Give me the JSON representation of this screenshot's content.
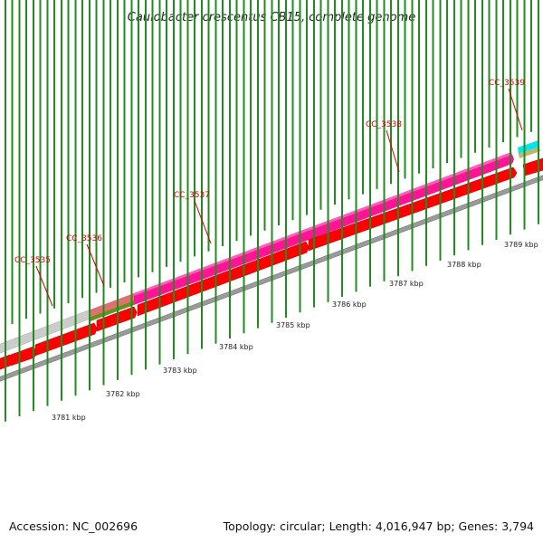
{
  "title": "Caulobacter crescentus CB15, complete genome",
  "footer": {
    "accession": "Accession: NC_002696",
    "summary": "Topology: circular; Length: 4,016,947 bp; Genes: 3,794"
  },
  "gene_labels": [
    "CC_3535",
    "CC_3536",
    "CC_3537",
    "CC_3538",
    "CC_3539"
  ],
  "kbp_labels": [
    "3781 kbp",
    "3782 kbp",
    "3783 kbp",
    "3784 kbp",
    "3785 kbp",
    "3786 kbp",
    "3787 kbp",
    "3788 kbp",
    "3789 kbp"
  ],
  "colors": {
    "cds": "#ff0000",
    "cds_dark": "#c00000",
    "gene_pink": "#ff1493",
    "gene_pink_light": "#ff7fc8",
    "gene_grey": "#cccccc",
    "gene_salmon": "#e07070",
    "gene_olive": "#6b8e23",
    "gene_cyan": "#00e5ee",
    "gene_tan": "#bdb76b",
    "backbone": "#888888",
    "ticks": "#228b22",
    "label_line": "#d40000"
  }
}
